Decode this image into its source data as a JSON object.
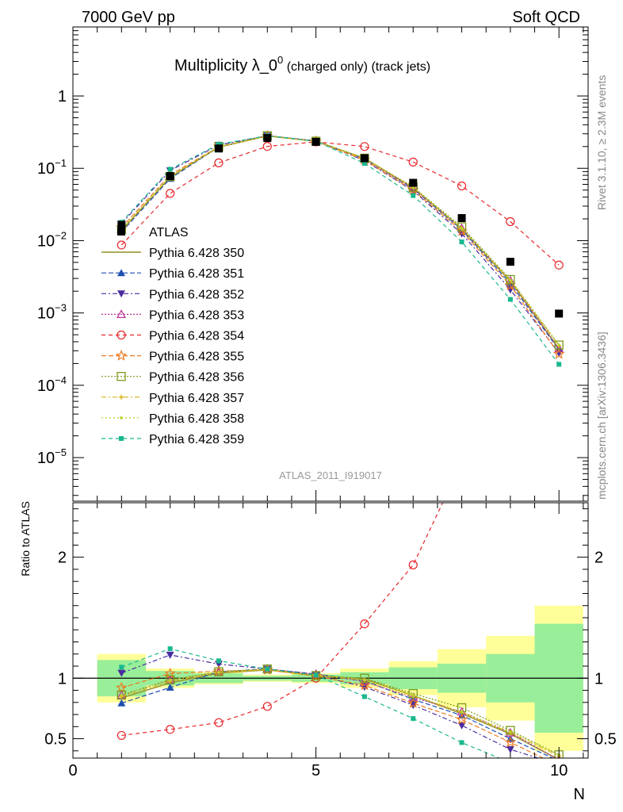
{
  "header": {
    "left": "7000 GeV pp",
    "right": "Soft QCD",
    "side_top": "Rivet 3.1.10, ≥ 2.3M events",
    "side_bottom": "mcplots.cern.ch [arXiv:1306.3436]"
  },
  "chart_data": {
    "type": "line",
    "title": "Multiplicity λ_0⁰ (charged only) (track jets)",
    "title_parts": {
      "main": "Multiplicity λ_0",
      "sup": "0",
      "sub": " (charged only) (track jets)"
    },
    "watermark": "ATLAS_2011_I919017",
    "xlabel": "N",
    "ylabel_ratio": "Ratio to ATLAS",
    "xlim": [
      0,
      10.6
    ],
    "ylim_main": [
      2.5e-06,
      9
    ],
    "ylim_ratio": [
      0.34,
      2.45
    ],
    "yscale_main": "log",
    "legend_position": "left",
    "x_ticks": [
      "0",
      "5",
      "10"
    ],
    "y_ticks_main": [
      {
        "base": "1",
        "exp": ""
      },
      {
        "base": "10",
        "exp": "−1"
      },
      {
        "base": "10",
        "exp": "−2"
      },
      {
        "base": "10",
        "exp": "−3"
      },
      {
        "base": "10",
        "exp": "−4"
      },
      {
        "base": "10",
        "exp": "−5"
      }
    ],
    "y_ticks_ratio": [
      "0.5",
      "1",
      "2"
    ],
    "x": [
      1,
      2,
      3,
      4,
      5,
      6,
      7,
      8,
      9,
      10
    ],
    "data": {
      "name": "ATLAS",
      "values": [
        0.0165,
        0.078,
        0.188,
        0.262,
        0.232,
        0.138,
        0.063,
        0.0205,
        0.0051,
        0.00098
      ],
      "stat_band_inner": [
        0.15,
        0.06,
        0.04,
        0.02,
        0.03,
        0.05,
        0.09,
        0.12,
        0.2,
        0.45
      ],
      "syst_band_outer": [
        0.2,
        0.08,
        0.05,
        0.03,
        0.04,
        0.08,
        0.14,
        0.24,
        0.35,
        0.6
      ]
    },
    "series": [
      {
        "name": "Pythia 6.428 350",
        "color": "#999933",
        "marker": "none",
        "dash": "",
        "y": [
          0.0138,
          0.075,
          0.196,
          0.28,
          0.237,
          0.137,
          0.054,
          0.0145,
          0.00275,
          0.00032
        ]
      },
      {
        "name": "Pythia 6.428 351",
        "color": "#1f4fb0",
        "marker": "triangle-up",
        "dash": "6,3",
        "y": [
          0.0131,
          0.072,
          0.198,
          0.282,
          0.24,
          0.135,
          0.052,
          0.0142,
          0.00255,
          0.00031
        ]
      },
      {
        "name": "Pythia 6.428 352",
        "color": "#4b2ca0",
        "marker": "triangle-down",
        "dash": "6,3,2,3",
        "y": [
          0.0172,
          0.093,
          0.21,
          0.282,
          0.238,
          0.128,
          0.049,
          0.0125,
          0.0021,
          0.00028
        ]
      },
      {
        "name": "Pythia 6.428 353",
        "color": "#bb3399",
        "marker": "triangle-open",
        "dash": "2,2",
        "y": [
          0.0142,
          0.077,
          0.197,
          0.282,
          0.24,
          0.134,
          0.053,
          0.0148,
          0.0028,
          0.00032
        ]
      },
      {
        "name": "Pythia 6.428 354",
        "color": "#e8262a",
        "marker": "circle-open",
        "dash": "5,4",
        "y": [
          0.0087,
          0.045,
          0.119,
          0.201,
          0.232,
          0.2,
          0.122,
          0.057,
          0.0183,
          0.0046
        ]
      },
      {
        "name": "Pythia 6.428 355",
        "color": "#ee7a22",
        "marker": "star-open",
        "dash": "6,3",
        "y": [
          0.0152,
          0.081,
          0.199,
          0.28,
          0.236,
          0.13,
          0.05,
          0.0135,
          0.0024,
          0.00027
        ]
      },
      {
        "name": "Pythia 6.428 356",
        "color": "#7a9a1a",
        "marker": "square-open",
        "dash": "2,2",
        "y": [
          0.0142,
          0.077,
          0.198,
          0.282,
          0.237,
          0.138,
          0.055,
          0.0155,
          0.0029,
          0.00036
        ]
      },
      {
        "name": "Pythia 6.428 357",
        "color": "#d9b21a",
        "marker": "cross-small",
        "dash": "6,3,2,3",
        "y": [
          0.014,
          0.076,
          0.197,
          0.28,
          0.237,
          0.136,
          0.054,
          0.0147,
          0.0028,
          0.00035
        ]
      },
      {
        "name": "Pythia 6.428 358",
        "color": "#b9d12a",
        "marker": "dot",
        "dash": "2,3",
        "y": [
          0.0142,
          0.077,
          0.197,
          0.281,
          0.238,
          0.136,
          0.054,
          0.0148,
          0.00285,
          0.00036
        ]
      },
      {
        "name": "Pythia 6.428 359",
        "color": "#18b88e",
        "marker": "square-filled",
        "dash": "5,4",
        "y": [
          0.018,
          0.097,
          0.215,
          0.282,
          0.238,
          0.117,
          0.042,
          0.0096,
          0.00154,
          0.000195
        ]
      }
    ]
  }
}
